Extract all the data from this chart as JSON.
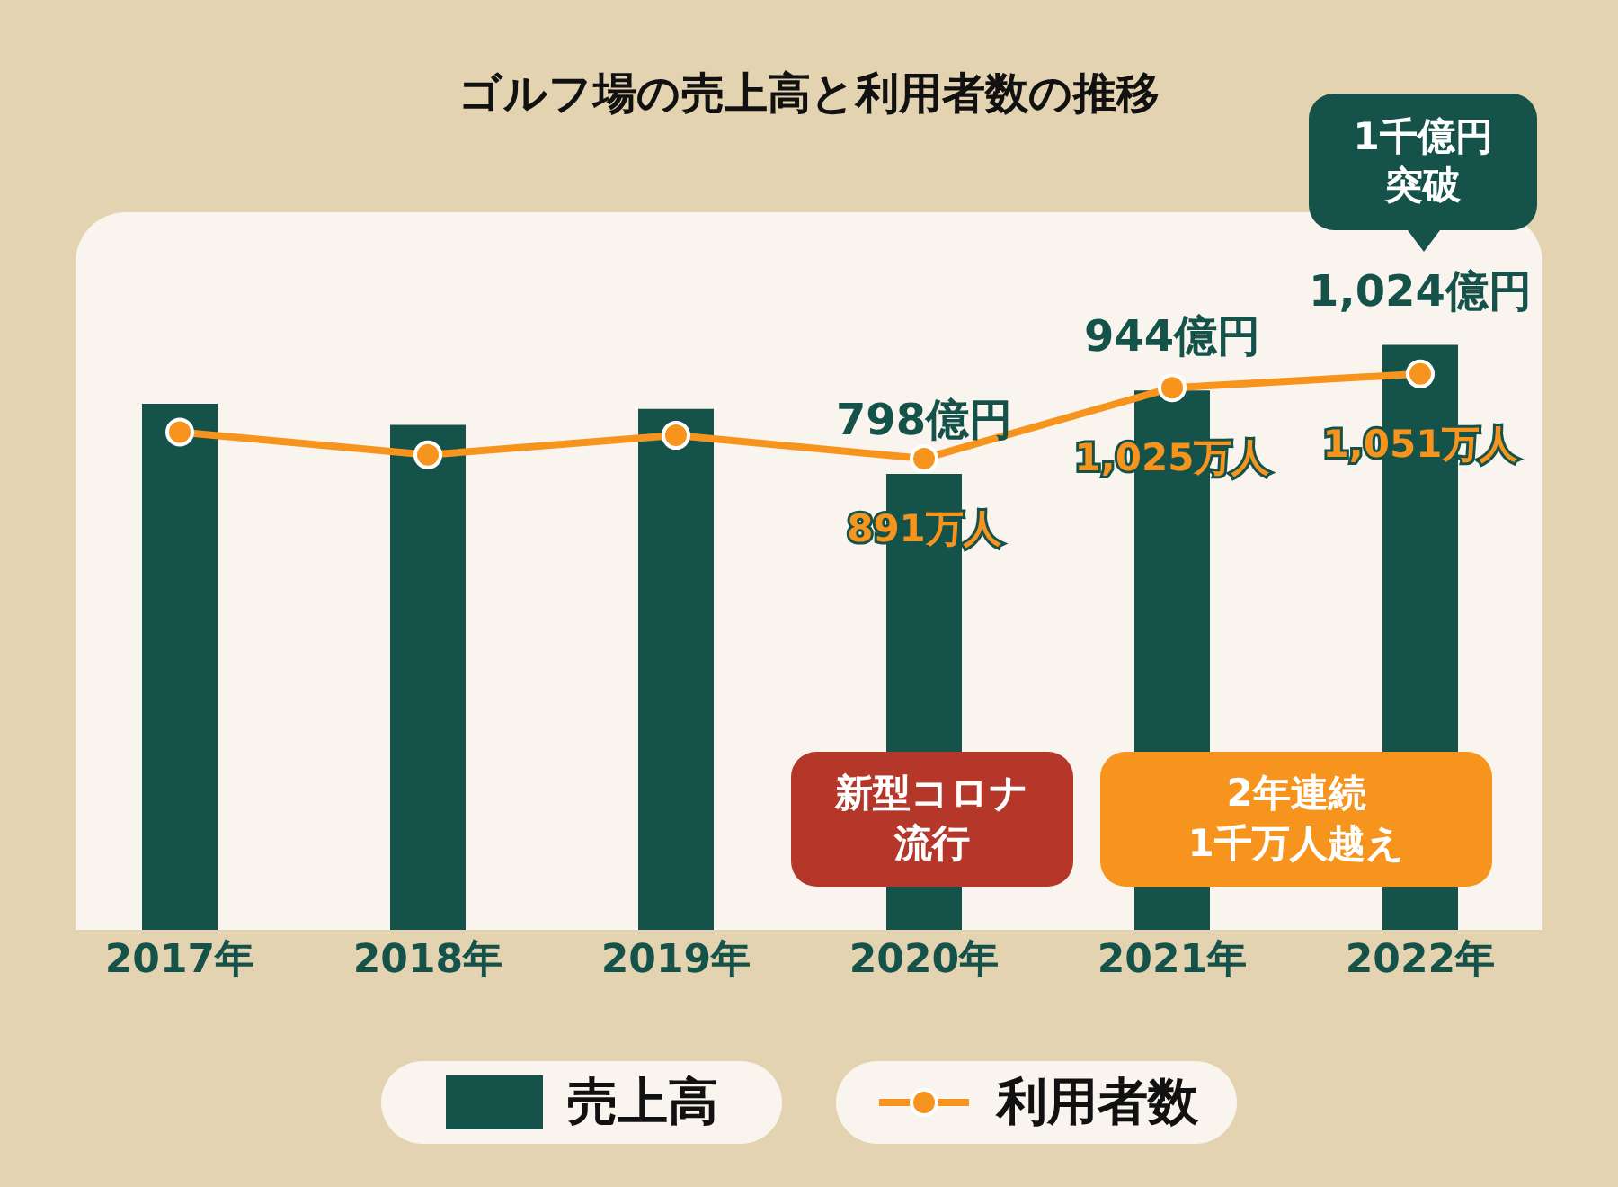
{
  "chart_data": {
    "type": "bar",
    "title": "ゴルフ場の売上高と利用者数の推移",
    "categories": [
      "2017年",
      "2018年",
      "2019年",
      "2020年",
      "2021年",
      "2022年"
    ],
    "series": [
      {
        "name": "売上高",
        "color": "#14524a",
        "values": [
          921,
          884,
          912,
          798,
          944,
          1024
        ],
        "value_labels": [
          null,
          null,
          null,
          "798億円",
          "944億円",
          "1,024億円"
        ]
      },
      {
        "name": "利用者数",
        "type": "line",
        "axis": "y2",
        "color": "#f7941d",
        "values": [
          941,
          898,
          935,
          891,
          1025,
          1051
        ],
        "value_labels": [
          null,
          null,
          null,
          "891万人",
          "1,025万人",
          "1,051万人"
        ]
      }
    ],
    "ylim": [
      0,
      1250
    ],
    "y2lim": [
      0,
      1350
    ],
    "tick_labels": "x",
    "legend": "bottom",
    "marker": "circle",
    "annotations": [
      "1千億円突破",
      "新型コロナ流行",
      "2年連続",
      "1千万人越え"
    ]
  }
}
